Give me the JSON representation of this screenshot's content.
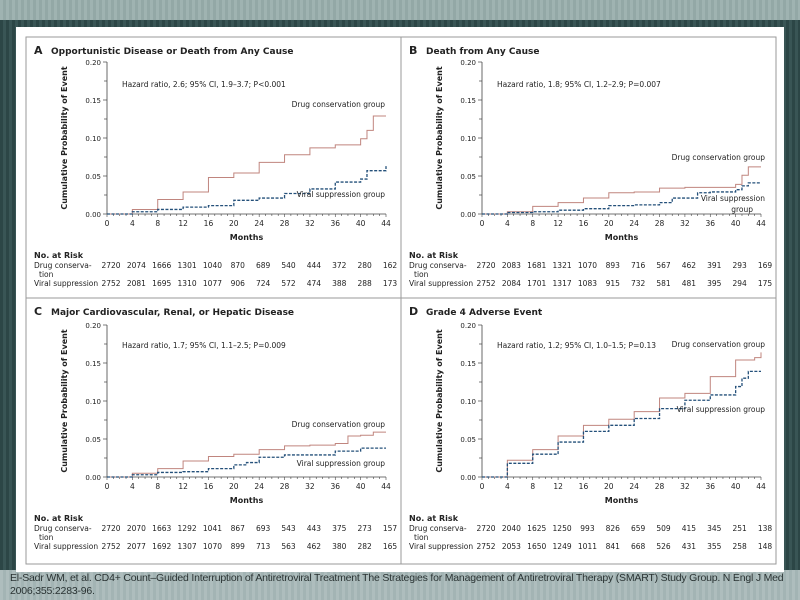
{
  "colors": {
    "drug": "#c0857e",
    "viral": "#24507a",
    "frame": "#9a9a9a"
  },
  "caption": "El-Sadr WM, et al. CD4+ Count–Guided Interruption of Antiretroviral Treatment The Strategies for Management of Antiretroviral Therapy (SMART) Study Group. N Engl J Med 2006;355:2283-96.",
  "chart_data": [
    {
      "type": "line",
      "step": true,
      "letter": "A",
      "title": "Opportunistic Disease or Death from Any Cause",
      "hazard_text": "Hazard ratio, 2.6; 95% CI, 1.9–3.7; P<0.001",
      "xlabel": "Months",
      "ylabel": "Cumulative Probability of Event",
      "xlim": [
        0,
        44
      ],
      "ylim": [
        0,
        0.2
      ],
      "xticks": [
        "0",
        "4",
        "8",
        "12",
        "16",
        "20",
        "24",
        "28",
        "32",
        "36",
        "40",
        "44"
      ],
      "yticks": [
        "0.00",
        "0.05",
        "0.10",
        "0.15",
        "0.20"
      ],
      "series": [
        {
          "name": "Drug conservation group",
          "x": [
            0,
            4,
            8,
            12,
            16,
            20,
            24,
            28,
            32,
            36,
            40,
            41,
            42,
            44
          ],
          "y": [
            0,
            0.006,
            0.019,
            0.029,
            0.048,
            0.054,
            0.068,
            0.078,
            0.087,
            0.091,
            0.099,
            0.11,
            0.129,
            0.129
          ]
        },
        {
          "name": "Viral suppression group",
          "x": [
            0,
            4,
            8,
            12,
            16,
            20,
            24,
            28,
            32,
            36,
            40,
            41,
            44
          ],
          "y": [
            0,
            0.003,
            0.006,
            0.009,
            0.011,
            0.018,
            0.021,
            0.027,
            0.033,
            0.042,
            0.046,
            0.057,
            0.063
          ]
        }
      ],
      "risk": {
        "heading": "No. at Risk",
        "drug_label": [
          "Drug conserva-",
          "tion"
        ],
        "viral_label": "Viral suppression",
        "drug": [
          "2720",
          "2074",
          "1666",
          "1301",
          "1040",
          "870",
          "689",
          "540",
          "444",
          "372",
          "280",
          "162"
        ],
        "viral": [
          "2752",
          "2081",
          "1695",
          "1310",
          "1077",
          "906",
          "724",
          "572",
          "474",
          "388",
          "288",
          "173"
        ]
      }
    },
    {
      "type": "line",
      "step": true,
      "letter": "B",
      "title": "Death from Any Cause",
      "hazard_text": "Hazard ratio, 1.8; 95% CI, 1.2–2.9; P=0.007",
      "xlabel": "Months",
      "ylabel": "Cumulative Probability of Event",
      "xlim": [
        0,
        44
      ],
      "ylim": [
        0,
        0.2
      ],
      "xticks": [
        "0",
        "4",
        "8",
        "12",
        "16",
        "20",
        "24",
        "28",
        "32",
        "36",
        "40",
        "44"
      ],
      "yticks": [
        "0.00",
        "0.05",
        "0.10",
        "0.15",
        "0.20"
      ],
      "series": [
        {
          "name": "Drug conservation group",
          "x": [
            0,
            4,
            8,
            12,
            16,
            20,
            24,
            28,
            32,
            36,
            40,
            41,
            42,
            44
          ],
          "y": [
            0,
            0.003,
            0.01,
            0.015,
            0.021,
            0.028,
            0.029,
            0.034,
            0.035,
            0.035,
            0.039,
            0.051,
            0.062,
            0.062
          ]
        },
        {
          "name": "Viral suppression group",
          "x": [
            0,
            4,
            8,
            12,
            16,
            20,
            24,
            28,
            30,
            34,
            36,
            40,
            41,
            42,
            44
          ],
          "y": [
            0,
            0.002,
            0.003,
            0.005,
            0.007,
            0.011,
            0.012,
            0.015,
            0.021,
            0.028,
            0.029,
            0.032,
            0.037,
            0.041,
            0.041
          ]
        }
      ],
      "risk": {
        "heading": "No. at Risk",
        "drug_label": [
          "Drug conserva-",
          "tion"
        ],
        "viral_label": "Viral suppression",
        "drug": [
          "2720",
          "2083",
          "1681",
          "1321",
          "1070",
          "893",
          "716",
          "567",
          "462",
          "391",
          "293",
          "169"
        ],
        "viral": [
          "2752",
          "2084",
          "1701",
          "1317",
          "1083",
          "915",
          "732",
          "581",
          "481",
          "395",
          "294",
          "175"
        ]
      }
    },
    {
      "type": "line",
      "step": true,
      "letter": "C",
      "title": "Major Cardiovascular, Renal, or Hepatic Disease",
      "hazard_text": "Hazard ratio, 1.7; 95% CI, 1.1–2.5; P=0.009",
      "xlabel": "Months",
      "ylabel": "Cumulative Probability of Event",
      "xlim": [
        0,
        44
      ],
      "ylim": [
        0,
        0.2
      ],
      "xticks": [
        "0",
        "4",
        "8",
        "12",
        "16",
        "20",
        "24",
        "28",
        "32",
        "36",
        "40",
        "44"
      ],
      "yticks": [
        "0.00",
        "0.05",
        "0.10",
        "0.15",
        "0.20"
      ],
      "series": [
        {
          "name": "Drug conservation group",
          "x": [
            0,
            4,
            8,
            12,
            16,
            20,
            24,
            28,
            32,
            36,
            38,
            40,
            42,
            44
          ],
          "y": [
            0,
            0.005,
            0.011,
            0.021,
            0.027,
            0.03,
            0.036,
            0.041,
            0.042,
            0.044,
            0.054,
            0.055,
            0.059,
            0.059
          ]
        },
        {
          "name": "Viral suppression group",
          "x": [
            0,
            4,
            8,
            12,
            16,
            20,
            22,
            24,
            28,
            32,
            36,
            40,
            44
          ],
          "y": [
            0,
            0.003,
            0.006,
            0.007,
            0.011,
            0.016,
            0.019,
            0.026,
            0.029,
            0.029,
            0.034,
            0.038,
            0.038
          ]
        }
      ],
      "risk": {
        "heading": "No. at Risk",
        "drug_label": [
          "Drug conserva-",
          "tion"
        ],
        "viral_label": "Viral suppression",
        "drug": [
          "2720",
          "2070",
          "1663",
          "1292",
          "1041",
          "867",
          "693",
          "543",
          "443",
          "375",
          "273",
          "157"
        ],
        "viral": [
          "2752",
          "2077",
          "1692",
          "1307",
          "1070",
          "899",
          "713",
          "563",
          "462",
          "380",
          "282",
          "165"
        ]
      }
    },
    {
      "type": "line",
      "step": true,
      "letter": "D",
      "title": "Grade 4 Adverse Event",
      "hazard_text": "Hazard ratio, 1.2; 95% CI, 1.0–1.5; P=0.13",
      "xlabel": "Months",
      "ylabel": "Cumulative Probability of Event",
      "xlim": [
        0,
        44
      ],
      "ylim": [
        0,
        0.2
      ],
      "xticks": [
        "0",
        "4",
        "8",
        "12",
        "16",
        "20",
        "24",
        "28",
        "32",
        "36",
        "40",
        "44"
      ],
      "yticks": [
        "0.00",
        "0.05",
        "0.10",
        "0.15",
        "0.20"
      ],
      "series": [
        {
          "name": "Drug conservation group",
          "x": [
            0,
            4,
            8,
            12,
            16,
            20,
            24,
            28,
            32,
            36,
            40,
            43,
            44
          ],
          "y": [
            0,
            0.022,
            0.036,
            0.054,
            0.068,
            0.076,
            0.086,
            0.104,
            0.11,
            0.132,
            0.154,
            0.157,
            0.164
          ]
        },
        {
          "name": "Viral suppression group",
          "x": [
            0,
            4,
            8,
            12,
            16,
            20,
            24,
            28,
            32,
            36,
            40,
            41,
            42,
            44
          ],
          "y": [
            0,
            0.018,
            0.03,
            0.046,
            0.06,
            0.068,
            0.077,
            0.09,
            0.101,
            0.108,
            0.119,
            0.13,
            0.139,
            0.139
          ]
        }
      ],
      "risk": {
        "heading": "No. at Risk",
        "drug_label": [
          "Drug conserva-",
          "tion"
        ],
        "viral_label": "Viral suppression",
        "drug": [
          "2720",
          "2040",
          "1625",
          "1250",
          "993",
          "826",
          "659",
          "509",
          "415",
          "345",
          "251",
          "138"
        ],
        "viral": [
          "2752",
          "2053",
          "1650",
          "1249",
          "1011",
          "841",
          "668",
          "526",
          "431",
          "355",
          "258",
          "148"
        ]
      }
    }
  ]
}
